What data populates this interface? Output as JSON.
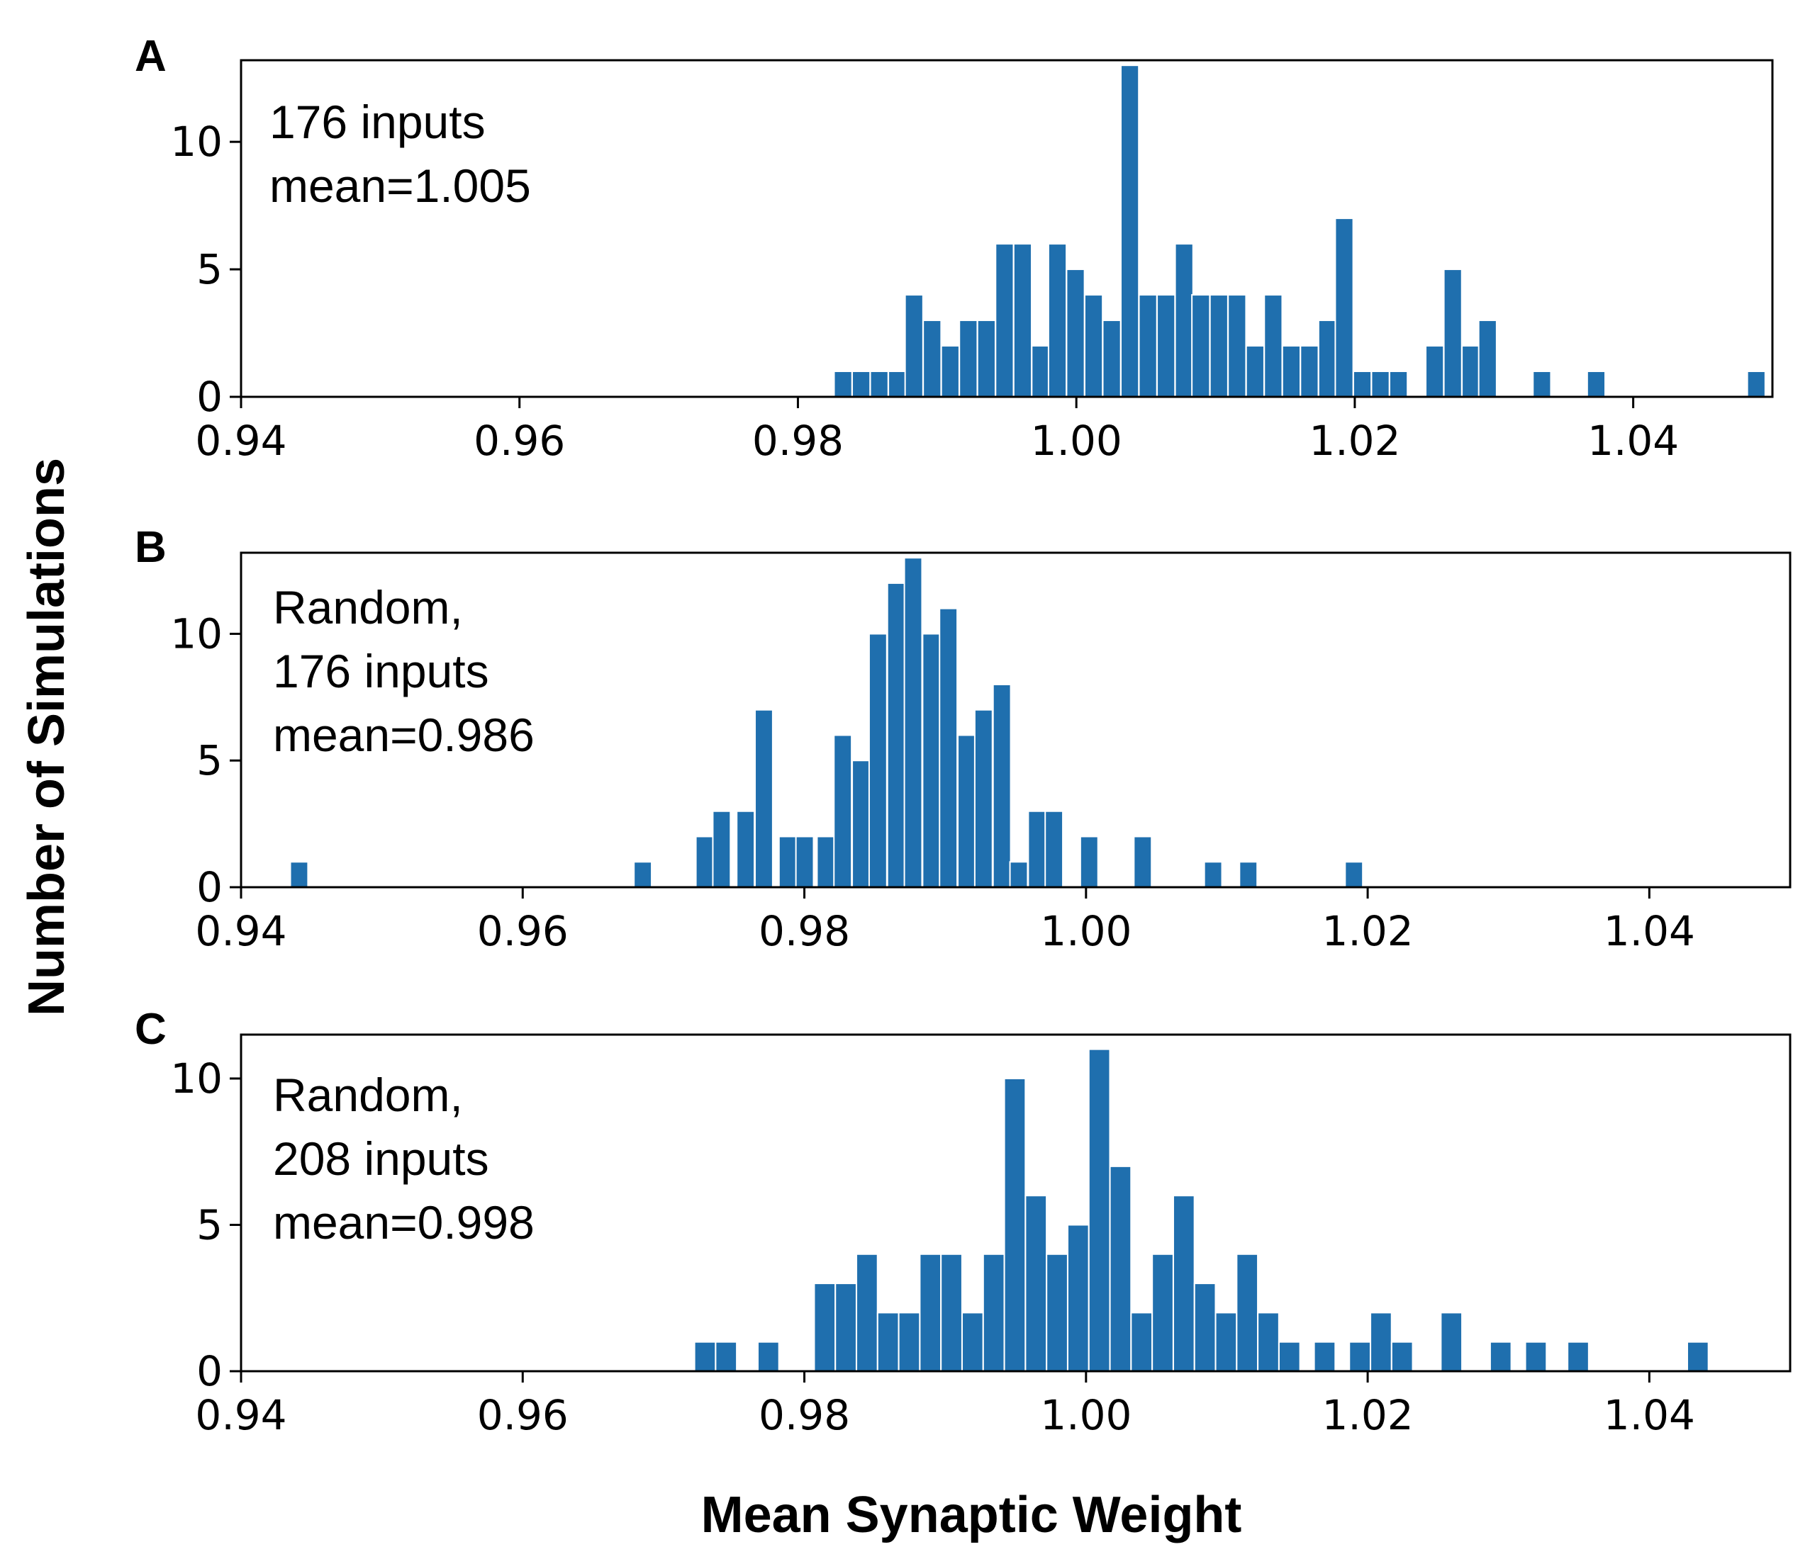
{
  "figure": {
    "ylabel": "Number of Simulations",
    "xlabel": "Mean Synaptic Weight"
  },
  "chart_data": [
    {
      "type": "bar",
      "panel": "A",
      "annotation": [
        "176 inputs",
        "mean=1.005"
      ],
      "xlim": [
        0.94,
        1.05
      ],
      "ylim": [
        0,
        13.2
      ],
      "xticks": [
        0.94,
        0.96,
        0.98,
        1.0,
        1.02,
        1.04
      ],
      "xtick_labels": [
        "0.94",
        "0.96",
        "0.98",
        "1.00",
        "1.02",
        "1.04"
      ],
      "yticks": [
        0,
        5,
        10
      ],
      "ytick_labels": [
        "0",
        "5",
        "10"
      ],
      "bin_width": 0.001283,
      "bar_color": "#1f6fae",
      "bins": [
        [
          0.9826,
          1
        ],
        [
          0.9839,
          1
        ],
        [
          0.9852,
          1
        ],
        [
          0.9865,
          1
        ],
        [
          0.9877,
          4
        ],
        [
          0.989,
          3
        ],
        [
          0.9903,
          2
        ],
        [
          0.9916,
          3
        ],
        [
          0.9929,
          3
        ],
        [
          0.9942,
          6
        ],
        [
          0.9955,
          6
        ],
        [
          0.9968,
          2
        ],
        [
          0.998,
          6
        ],
        [
          0.9993,
          5
        ],
        [
          1.0006,
          4
        ],
        [
          1.0019,
          3
        ],
        [
          1.0032,
          13
        ],
        [
          1.0045,
          4
        ],
        [
          1.0058,
          4
        ],
        [
          1.0071,
          6
        ],
        [
          1.0083,
          4
        ],
        [
          1.0096,
          4
        ],
        [
          1.0109,
          4
        ],
        [
          1.0122,
          2
        ],
        [
          1.0135,
          4
        ],
        [
          1.0148,
          2
        ],
        [
          1.0161,
          2
        ],
        [
          1.0174,
          3
        ],
        [
          1.0186,
          7
        ],
        [
          1.0199,
          1
        ],
        [
          1.0212,
          1
        ],
        [
          1.0225,
          1
        ],
        [
          1.0251,
          2
        ],
        [
          1.0264,
          5
        ],
        [
          1.0277,
          2
        ],
        [
          1.0289,
          3
        ],
        [
          1.0328,
          1
        ],
        [
          1.0367,
          1
        ],
        [
          1.0482,
          1
        ]
      ]
    },
    {
      "type": "bar",
      "panel": "B",
      "annotation": [
        "Random,",
        "176 inputs",
        "mean=0.986"
      ],
      "xlim": [
        0.94,
        1.05
      ],
      "ylim": [
        0,
        13.2
      ],
      "xticks": [
        0.94,
        0.96,
        0.98,
        1.0,
        1.02,
        1.04
      ],
      "xtick_labels": [
        "0.94",
        "0.96",
        "0.98",
        "1.00",
        "1.02",
        "1.04"
      ],
      "yticks": [
        0,
        5,
        10
      ],
      "ytick_labels": [
        "0",
        "5",
        "10"
      ],
      "bin_width": 0.001252,
      "bar_color": "#1f6fae",
      "bins": [
        [
          0.9435,
          1
        ],
        [
          0.9679,
          1
        ],
        [
          0.9723,
          2
        ],
        [
          0.9735,
          3
        ],
        [
          0.9752,
          3
        ],
        [
          0.9765,
          7
        ],
        [
          0.9782,
          2
        ],
        [
          0.9794,
          2
        ],
        [
          0.9809,
          2
        ],
        [
          0.9821,
          6
        ],
        [
          0.9834,
          5
        ],
        [
          0.9846,
          10
        ],
        [
          0.9859,
          12
        ],
        [
          0.9871,
          13
        ],
        [
          0.9884,
          10
        ],
        [
          0.9896,
          11
        ],
        [
          0.9909,
          6
        ],
        [
          0.9921,
          7
        ],
        [
          0.9934,
          8
        ],
        [
          0.9946,
          1
        ],
        [
          0.9959,
          3
        ],
        [
          0.9971,
          3
        ],
        [
          0.9996,
          2
        ],
        [
          1.0034,
          2
        ],
        [
          1.0084,
          1
        ],
        [
          1.0109,
          1
        ],
        [
          1.0184,
          1
        ]
      ]
    },
    {
      "type": "bar",
      "panel": "C",
      "annotation": [
        "Random,",
        "208 inputs",
        "mean=0.998"
      ],
      "xlim": [
        0.94,
        1.05
      ],
      "ylim": [
        0,
        11.5
      ],
      "xticks": [
        0.94,
        0.96,
        0.98,
        1.0,
        1.02,
        1.04
      ],
      "xtick_labels": [
        "0.94",
        "0.96",
        "0.98",
        "1.00",
        "1.02",
        "1.04"
      ],
      "yticks": [
        0,
        5,
        10
      ],
      "ytick_labels": [
        "0",
        "5",
        "10"
      ],
      "bin_width": 0.001495,
      "bar_color": "#1f6fae",
      "bins": [
        [
          0.9722,
          1
        ],
        [
          0.9737,
          1
        ],
        [
          0.9767,
          1
        ],
        [
          0.9807,
          3
        ],
        [
          0.9822,
          3
        ],
        [
          0.9837,
          4
        ],
        [
          0.9852,
          2
        ],
        [
          0.9867,
          2
        ],
        [
          0.9882,
          4
        ],
        [
          0.9897,
          4
        ],
        [
          0.9912,
          2
        ],
        [
          0.9927,
          4
        ],
        [
          0.9942,
          10
        ],
        [
          0.9957,
          6
        ],
        [
          0.9972,
          4
        ],
        [
          0.9987,
          5
        ],
        [
          1.0002,
          11
        ],
        [
          1.0017,
          7
        ],
        [
          1.0032,
          2
        ],
        [
          1.0047,
          4
        ],
        [
          1.0062,
          6
        ],
        [
          1.0077,
          3
        ],
        [
          1.0092,
          2
        ],
        [
          1.0107,
          4
        ],
        [
          1.0122,
          2
        ],
        [
          1.0137,
          1
        ],
        [
          1.0162,
          1
        ],
        [
          1.0187,
          1
        ],
        [
          1.0202,
          2
        ],
        [
          1.0217,
          1
        ],
        [
          1.0252,
          2
        ],
        [
          1.0287,
          1
        ],
        [
          1.0312,
          1
        ],
        [
          1.0342,
          1
        ],
        [
          1.0427,
          1
        ]
      ]
    }
  ]
}
